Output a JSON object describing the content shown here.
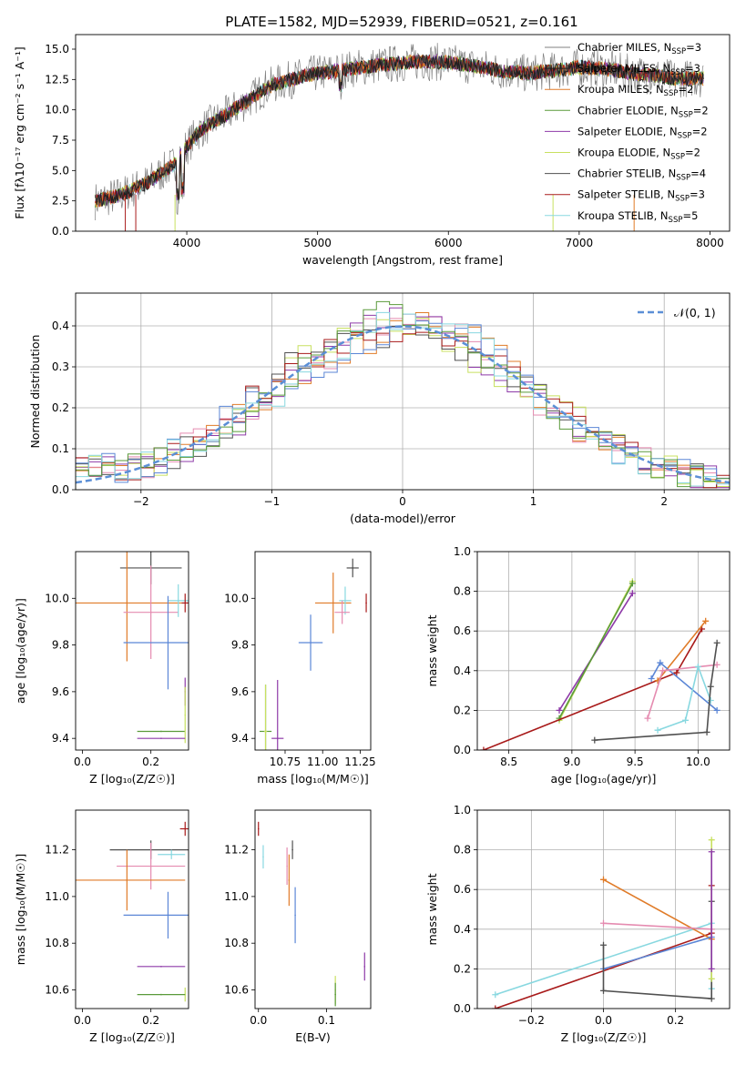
{
  "figure": {
    "title": "PLATE=1582, MJD=52939, FIBERID=0521, z=0.161"
  },
  "colors": {
    "chabrier_miles": "#808080",
    "salpeter_miles": "#1f1f1f",
    "kroupa_miles": "#e07b28",
    "chabrier_elodie": "#5a9a3a",
    "salpeter_elodie": "#8e3aa8",
    "kroupa_elodie": "#c8e060",
    "chabrier_stelib": "#505050",
    "salpeter_stelib": "#a81a1a",
    "kroupa_stelib": "#88d8e0",
    "extra_blue": "#5b86d6",
    "extra_pink": "#e58bb0",
    "gauss": "#5b8fd6"
  },
  "chart_data": [
    {
      "id": "spectrum",
      "type": "line",
      "xlabel": "wavelength [Angstrom, rest frame]",
      "ylabel": "Flux [fλ10⁻¹⁷ erg cm⁻² s⁻¹ A⁻¹]",
      "xlim": [
        3150,
        8150
      ],
      "ylim": [
        0,
        16.2
      ],
      "xticks": [
        4000,
        5000,
        6000,
        7000,
        8000
      ],
      "yticks": [
        0.0,
        2.5,
        5.0,
        7.5,
        10.0,
        12.5,
        15.0
      ],
      "continuum": {
        "x": [
          3300,
          3500,
          3700,
          3900,
          4000,
          4100,
          4200,
          4300,
          4400,
          4500,
          4600,
          4700,
          4800,
          4900,
          5000,
          5200,
          5400,
          5600,
          5800,
          6000,
          6200,
          6400,
          6600,
          6800,
          7000,
          7200,
          7400,
          7600,
          7700
        ],
        "y": [
          2.5,
          3.0,
          4.0,
          5.5,
          7.0,
          8.3,
          9.0,
          9.6,
          10.3,
          11.0,
          11.8,
          12.2,
          12.5,
          12.8,
          13.0,
          13.3,
          13.6,
          13.8,
          14.0,
          13.9,
          13.6,
          13.2,
          13.0,
          13.2,
          13.5,
          13.4,
          13.0,
          12.8,
          12.6
        ]
      },
      "legend": [
        {
          "name": "Chabrier MILES, N",
          "sub": "SSP",
          "n": "=3"
        },
        {
          "name": "Salpeter MILES, N",
          "sub": "SSP",
          "n": "=3"
        },
        {
          "name": "Kroupa MILES, N",
          "sub": "SSP",
          "n": "=2"
        },
        {
          "name": "Chabrier ELODIE, N",
          "sub": "SSP",
          "n": "=2"
        },
        {
          "name": "Salpeter ELODIE, N",
          "sub": "SSP",
          "n": "=2"
        },
        {
          "name": "Kroupa ELODIE, N",
          "sub": "SSP",
          "n": "=2"
        },
        {
          "name": "Chabrier STELIB, N",
          "sub": "SSP",
          "n": "=4"
        },
        {
          "name": "Salpeter STELIB, N",
          "sub": "SSP",
          "n": "=3"
        },
        {
          "name": "Kroupa STELIB, N",
          "sub": "SSP",
          "n": "=5"
        }
      ]
    },
    {
      "id": "residuals",
      "type": "histogram",
      "xlabel": "(data-model)/error",
      "ylabel": "Normed distribution",
      "xlim": [
        -2.5,
        2.5
      ],
      "ylim": [
        0,
        0.48
      ],
      "xticks": [
        -2,
        -1,
        0,
        1,
        2
      ],
      "yticks": [
        0.0,
        0.1,
        0.2,
        0.3,
        0.4
      ],
      "legend": "𝒩(0, 1)",
      "grid": true
    },
    {
      "id": "age_vs_Z",
      "type": "errorbar",
      "xlabel": "Z [log₁₀(Z/Z☉)]",
      "ylabel": "age  [log₁₀(age/yr)]",
      "xlim": [
        -0.02,
        0.31
      ],
      "ylim": [
        9.35,
        10.2
      ],
      "xticks": [
        0.0,
        0.2
      ],
      "yticks": [
        9.4,
        9.6,
        9.8,
        10.0
      ],
      "points": [
        {
          "c": "chabrier_stelib",
          "x": 0.2,
          "xe": 0.09,
          "y": 10.13,
          "ye": 0.07
        },
        {
          "c": "kroupa_miles",
          "x": 0.13,
          "xe": 0.16,
          "y": 9.98,
          "ye": 0.25
        },
        {
          "c": "extra_pink",
          "x": 0.2,
          "xe": 0.08,
          "y": 9.94,
          "ye": 0.2
        },
        {
          "c": "kroupa_stelib",
          "x": 0.28,
          "xe": 0.03,
          "y": 9.99,
          "ye": 0.07
        },
        {
          "c": "salpeter_stelib",
          "x": 0.3,
          "xe": 0.01,
          "y": 9.98,
          "ye": 0.04
        },
        {
          "c": "extra_blue",
          "x": 0.25,
          "xe": 0.13,
          "y": 9.81,
          "ye": 0.2
        },
        {
          "c": "salpeter_elodie",
          "x": 0.3,
          "xe": 0.0,
          "y": 9.6,
          "ye": 0.06
        },
        {
          "c": "chabrier_elodie",
          "x": 0.23,
          "xe": 0.07,
          "y": 9.43,
          "ye": 0.0
        },
        {
          "c": "kroupa_elodie",
          "x": 0.3,
          "xe": 0.0,
          "y": 9.5,
          "ye": 0.12
        },
        {
          "c": "salpeter_elodie",
          "x": 0.23,
          "xe": 0.07,
          "y": 9.4,
          "ye": 0.0
        }
      ]
    },
    {
      "id": "age_vs_mass",
      "type": "errorbar",
      "xlabel": "mass [log₁₀(M/M☉)]",
      "ylabel": "",
      "xlim": [
        10.55,
        11.32
      ],
      "ylim": [
        9.35,
        10.2
      ],
      "xticks": [
        10.75,
        11.0,
        11.25
      ],
      "yticks": [
        9.4,
        9.6,
        9.8,
        10.0
      ],
      "xticklabels": [
        "10.75",
        "11.00",
        "11.25"
      ],
      "points": [
        {
          "c": "chabrier_stelib",
          "x": 11.2,
          "xe": 0.04,
          "y": 10.13,
          "ye": 0.04
        },
        {
          "c": "kroupa_miles",
          "x": 11.07,
          "xe": 0.12,
          "y": 9.98,
          "ye": 0.13
        },
        {
          "c": "salpeter_stelib",
          "x": 11.29,
          "xe": 0.0,
          "y": 9.98,
          "ye": 0.04
        },
        {
          "c": "kroupa_stelib",
          "x": 11.15,
          "xe": 0.04,
          "y": 9.99,
          "ye": 0.06
        },
        {
          "c": "extra_pink",
          "x": 11.13,
          "xe": 0.05,
          "y": 9.94,
          "ye": 0.05
        },
        {
          "c": "extra_blue",
          "x": 10.92,
          "xe": 0.08,
          "y": 9.81,
          "ye": 0.12
        },
        {
          "c": "salpeter_elodie",
          "x": 10.7,
          "xe": 0.04,
          "y": 9.4,
          "ye": 0.25
        },
        {
          "c": "chabrier_elodie",
          "x": 10.62,
          "xe": 0.04,
          "y": 9.43,
          "ye": 0.2
        },
        {
          "c": "kroupa_elodie",
          "x": 10.62,
          "xe": 0.01,
          "y": 9.43,
          "ye": 0.2
        }
      ]
    },
    {
      "id": "weight_vs_age",
      "type": "line",
      "xlabel": "age  [log₁₀(age/yr)]",
      "ylabel": "mass weight",
      "xlim": [
        8.25,
        10.25
      ],
      "ylim": [
        0.0,
        1.0
      ],
      "xticks": [
        8.5,
        9.0,
        9.5,
        10.0
      ],
      "yticks": [
        0.0,
        0.2,
        0.4,
        0.6,
        0.8,
        1.0
      ],
      "grid": true,
      "series": [
        {
          "c": "kroupa_elodie",
          "x": [
            8.9,
            9.48
          ],
          "y": [
            0.15,
            0.85
          ]
        },
        {
          "c": "salpeter_elodie",
          "x": [
            8.9,
            9.48
          ],
          "y": [
            0.2,
            0.79
          ]
        },
        {
          "c": "chabrier_elodie",
          "x": [
            8.9,
            9.48
          ],
          "y": [
            0.16,
            0.84
          ]
        },
        {
          "c": "salpeter_stelib",
          "x": [
            8.3,
            9.83,
            10.03
          ],
          "y": [
            0.0,
            0.39,
            0.61
          ]
        },
        {
          "c": "kroupa_miles",
          "x": [
            9.68,
            10.06
          ],
          "y": [
            0.35,
            0.65
          ]
        },
        {
          "c": "extra_blue",
          "x": [
            9.63,
            9.7,
            10.15
          ],
          "y": [
            0.36,
            0.44,
            0.2
          ]
        },
        {
          "c": "extra_pink",
          "x": [
            9.6,
            9.72,
            10.15
          ],
          "y": [
            0.16,
            0.4,
            0.43
          ]
        },
        {
          "c": "kroupa_stelib",
          "x": [
            9.68,
            9.9,
            10.0,
            10.1
          ],
          "y": [
            0.1,
            0.15,
            0.42,
            0.25
          ]
        },
        {
          "c": "chabrier_stelib",
          "x": [
            9.18,
            10.07,
            10.1,
            10.15
          ],
          "y": [
            0.05,
            0.09,
            0.32,
            0.54
          ]
        }
      ]
    },
    {
      "id": "mass_vs_Z",
      "type": "errorbar",
      "xlabel": "Z [log₁₀(Z/Z☉)]",
      "ylabel": "mass [log₁₀(M/M☉)]",
      "xlim": [
        -0.02,
        0.31
      ],
      "ylim": [
        10.52,
        11.37
      ],
      "xticks": [
        0.0,
        0.2
      ],
      "yticks": [
        10.6,
        10.8,
        11.0,
        11.2
      ],
      "points": [
        {
          "c": "salpeter_stelib",
          "x": 0.3,
          "xe": 0.015,
          "y": 11.29,
          "ye": 0.03
        },
        {
          "c": "chabrier_stelib",
          "x": 0.2,
          "xe": 0.12,
          "y": 11.2,
          "ye": 0.04
        },
        {
          "c": "kroupa_stelib",
          "x": 0.26,
          "xe": 0.04,
          "y": 11.18,
          "ye": 0.02
        },
        {
          "c": "extra_pink",
          "x": 0.2,
          "xe": 0.1,
          "y": 11.13,
          "ye": 0.1
        },
        {
          "c": "kroupa_miles",
          "x": 0.13,
          "xe": 0.17,
          "y": 11.07,
          "ye": 0.13
        },
        {
          "c": "extra_blue",
          "x": 0.25,
          "xe": 0.13,
          "y": 10.92,
          "ye": 0.1
        },
        {
          "c": "salpeter_elodie",
          "x": 0.23,
          "xe": 0.07,
          "y": 10.7,
          "ye": 0.0
        },
        {
          "c": "kroupa_elodie",
          "x": 0.3,
          "xe": 0.0,
          "y": 10.58,
          "ye": 0.03
        },
        {
          "c": "chabrier_elodie",
          "x": 0.23,
          "xe": 0.07,
          "y": 10.58,
          "ye": 0.0
        }
      ]
    },
    {
      "id": "mass_vs_ebv",
      "type": "errorbar",
      "xlabel": "E(B-V)",
      "ylabel": "",
      "xlim": [
        -0.005,
        0.165
      ],
      "ylim": [
        10.52,
        11.37
      ],
      "xticks": [
        0.0,
        0.1
      ],
      "yticks": [
        10.6,
        10.8,
        11.0,
        11.2
      ],
      "points": [
        {
          "c": "salpeter_stelib",
          "x": 0.0,
          "xe": 0.0,
          "y": 11.29,
          "ye": 0.03
        },
        {
          "c": "chabrier_stelib",
          "x": 0.05,
          "xe": 0.0,
          "y": 11.2,
          "ye": 0.04
        },
        {
          "c": "kroupa_stelib",
          "x": 0.007,
          "xe": 0.0,
          "y": 11.17,
          "ye": 0.05
        },
        {
          "c": "extra_pink",
          "x": 0.042,
          "xe": 0.0,
          "y": 11.13,
          "ye": 0.08
        },
        {
          "c": "kroupa_miles",
          "x": 0.045,
          "xe": 0.0,
          "y": 11.07,
          "ye": 0.11
        },
        {
          "c": "extra_blue",
          "x": 0.054,
          "xe": 0.0,
          "y": 10.92,
          "ye": 0.12
        },
        {
          "c": "salpeter_elodie",
          "x": 0.156,
          "xe": 0.0,
          "y": 10.7,
          "ye": 0.06
        },
        {
          "c": "kroupa_elodie",
          "x": 0.113,
          "xe": 0.0,
          "y": 10.6,
          "ye": 0.06
        },
        {
          "c": "chabrier_elodie",
          "x": 0.113,
          "xe": 0.0,
          "y": 10.58,
          "ye": 0.05
        }
      ]
    },
    {
      "id": "weight_vs_Z",
      "type": "line",
      "xlabel": "Z [log₁₀(Z/Z☉)]",
      "ylabel": "mass weight",
      "xlim": [
        -0.35,
        0.35
      ],
      "ylim": [
        0.0,
        1.0
      ],
      "xticks": [
        -0.2,
        0.0,
        0.2
      ],
      "yticks": [
        0.0,
        0.2,
        0.4,
        0.6,
        0.8,
        1.0
      ],
      "xticklabels": [
        "−0.2",
        "0.0",
        "0.2"
      ],
      "grid": true,
      "series": [
        {
          "c": "kroupa_stelib",
          "x": [
            -0.3,
            0.3,
            0.3
          ],
          "y": [
            0.07,
            0.43,
            0.1
          ]
        },
        {
          "c": "salpeter_stelib",
          "x": [
            -0.3,
            0.3,
            0.3
          ],
          "y": [
            0.0,
            0.38,
            0.62
          ]
        },
        {
          "c": "kroupa_miles",
          "x": [
            0.0,
            0.3
          ],
          "y": [
            0.65,
            0.35
          ]
        },
        {
          "c": "extra_pink",
          "x": [
            0.0,
            0.3
          ],
          "y": [
            0.43,
            0.4
          ]
        },
        {
          "c": "extra_blue",
          "x": [
            0.0,
            0.3
          ],
          "y": [
            0.2,
            0.36
          ]
        },
        {
          "c": "chabrier_stelib",
          "x": [
            0.0,
            0.0,
            0.3,
            0.3
          ],
          "y": [
            0.32,
            0.09,
            0.05,
            0.54
          ]
        },
        {
          "c": "kroupa_elodie",
          "x": [
            0.3,
            0.3
          ],
          "y": [
            0.15,
            0.85
          ]
        },
        {
          "c": "salpeter_elodie",
          "x": [
            0.3,
            0.3
          ],
          "y": [
            0.2,
            0.79
          ]
        }
      ]
    }
  ]
}
